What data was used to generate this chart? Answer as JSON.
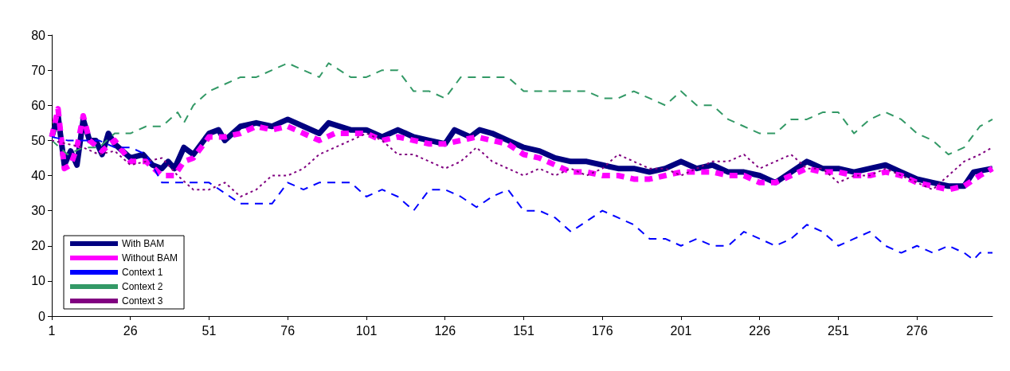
{
  "chart_data": {
    "type": "line",
    "xlim": [
      1,
      300
    ],
    "xticks": [
      1,
      26,
      51,
      76,
      101,
      126,
      151,
      176,
      201,
      226,
      251,
      276
    ],
    "ylim": [
      0,
      80
    ],
    "yticks": [
      0,
      10,
      20,
      30,
      40,
      50,
      60,
      70,
      80
    ],
    "grid": false,
    "legend": "bottom left",
    "marker": "none",
    "series": [
      {
        "name": "With BAM",
        "color": "#000080",
        "line_style": "solid",
        "x": [
          1,
          3,
          5,
          7,
          9,
          11,
          13,
          15,
          17,
          19,
          21,
          26,
          30,
          33,
          36,
          38,
          40,
          43,
          46,
          51,
          54,
          56,
          61,
          66,
          71,
          76,
          81,
          86,
          89,
          96,
          101,
          106,
          111,
          116,
          121,
          126,
          129,
          134,
          137,
          141,
          146,
          151,
          156,
          161,
          166,
          171,
          176,
          181,
          186,
          191,
          196,
          201,
          206,
          211,
          216,
          221,
          226,
          231,
          236,
          241,
          246,
          251,
          256,
          261,
          266,
          271,
          276,
          281,
          286,
          291,
          294,
          300
        ],
        "values": [
          51,
          57,
          43,
          47,
          43,
          56,
          50,
          50,
          46,
          52,
          49,
          45,
          46,
          43,
          42,
          44,
          42,
          48,
          46,
          52,
          53,
          50,
          54,
          55,
          54,
          56,
          54,
          52,
          55,
          53,
          53,
          51,
          53,
          51,
          50,
          49,
          53,
          51,
          53,
          52,
          50,
          48,
          47,
          45,
          44,
          44,
          43,
          42,
          42,
          41,
          42,
          44,
          42,
          43,
          41,
          41,
          40,
          38,
          41,
          44,
          42,
          42,
          41,
          42,
          43,
          41,
          39,
          38,
          37,
          37,
          41,
          42
        ]
      },
      {
        "name": "Without BAM",
        "color": "#ff00ff",
        "line_style": "dashed",
        "x": [
          1,
          3,
          5,
          7,
          9,
          11,
          13,
          17,
          21,
          26,
          31,
          36,
          40,
          43,
          46,
          51,
          56,
          61,
          66,
          71,
          76,
          81,
          86,
          91,
          96,
          101,
          106,
          111,
          116,
          121,
          126,
          131,
          136,
          141,
          146,
          151,
          156,
          161,
          166,
          171,
          176,
          181,
          186,
          191,
          196,
          201,
          206,
          211,
          216,
          221,
          226,
          231,
          236,
          241,
          246,
          251,
          256,
          261,
          266,
          271,
          276,
          281,
          286,
          291,
          296,
          300
        ],
        "values": [
          51,
          59,
          42,
          43,
          48,
          57,
          50,
          47,
          50,
          44,
          44,
          40,
          40,
          44,
          45,
          51,
          51,
          52,
          54,
          53,
          54,
          52,
          50,
          52,
          52,
          52,
          50,
          51,
          50,
          49,
          49,
          50,
          51,
          50,
          49,
          46,
          45,
          43,
          41,
          41,
          40,
          40,
          39,
          39,
          40,
          41,
          41,
          41,
          40,
          40,
          38,
          38,
          40,
          42,
          41,
          41,
          40,
          40,
          41,
          40,
          38,
          37,
          36,
          37,
          40,
          42
        ]
      },
      {
        "name": "Context 1",
        "color": "#0000ff",
        "line_style": "dashed",
        "x": [
          1,
          6,
          16,
          21,
          26,
          31,
          36,
          46,
          51,
          56,
          61,
          66,
          71,
          76,
          81,
          86,
          96,
          101,
          106,
          111,
          116,
          121,
          126,
          131,
          136,
          141,
          146,
          151,
          156,
          161,
          166,
          171,
          176,
          181,
          186,
          191,
          196,
          201,
          206,
          211,
          216,
          221,
          226,
          231,
          236,
          241,
          246,
          251,
          256,
          261,
          266,
          271,
          276,
          281,
          286,
          291,
          294,
          296,
          300
        ],
        "values": [
          51,
          50,
          50,
          48,
          48,
          46,
          38,
          38,
          38,
          35,
          32,
          32,
          32,
          38,
          36,
          38,
          38,
          34,
          36,
          34,
          30,
          36,
          36,
          34,
          31,
          34,
          36,
          30,
          30,
          28,
          24,
          27,
          30,
          28,
          26,
          22,
          22,
          20,
          22,
          20,
          20,
          24,
          22,
          20,
          22,
          26,
          24,
          20,
          22,
          24,
          20,
          18,
          20,
          18,
          20,
          18,
          16,
          18,
          18
        ]
      },
      {
        "name": "Context 2",
        "color": "#339966",
        "line_style": "dashed",
        "x": [
          1,
          6,
          11,
          16,
          21,
          26,
          31,
          36,
          41,
          43,
          46,
          51,
          56,
          61,
          66,
          71,
          76,
          81,
          86,
          89,
          96,
          101,
          106,
          111,
          116,
          121,
          126,
          131,
          136,
          141,
          146,
          151,
          156,
          161,
          166,
          171,
          176,
          181,
          186,
          191,
          196,
          201,
          206,
          211,
          216,
          221,
          226,
          231,
          236,
          241,
          246,
          251,
          256,
          261,
          266,
          271,
          276,
          281,
          286,
          291,
          296,
          300
        ],
        "values": [
          50,
          46,
          48,
          48,
          52,
          52,
          54,
          54,
          58,
          55,
          60,
          64,
          66,
          68,
          68,
          70,
          72,
          70,
          68,
          72,
          68,
          68,
          70,
          70,
          64,
          64,
          62,
          68,
          68,
          68,
          68,
          64,
          64,
          64,
          64,
          64,
          62,
          62,
          64,
          62,
          60,
          64,
          60,
          60,
          56,
          54,
          52,
          52,
          56,
          56,
          58,
          58,
          52,
          56,
          58,
          56,
          52,
          50,
          46,
          48,
          54,
          56
        ]
      },
      {
        "name": "Context 3",
        "color": "#800080",
        "line_style": "dotted",
        "x": [
          1,
          6,
          11,
          16,
          21,
          26,
          31,
          36,
          41,
          46,
          51,
          56,
          61,
          66,
          71,
          76,
          81,
          86,
          91,
          96,
          101,
          106,
          111,
          116,
          121,
          126,
          131,
          136,
          141,
          146,
          151,
          156,
          161,
          166,
          171,
          176,
          181,
          186,
          191,
          196,
          201,
          206,
          211,
          216,
          221,
          226,
          231,
          236,
          241,
          246,
          251,
          256,
          261,
          266,
          271,
          276,
          281,
          286,
          291,
          296,
          300
        ],
        "values": [
          50,
          49,
          48,
          46,
          47,
          43,
          44,
          45,
          40,
          36,
          36,
          38,
          34,
          36,
          40,
          40,
          42,
          46,
          48,
          50,
          52,
          50,
          46,
          46,
          44,
          42,
          44,
          48,
          44,
          42,
          40,
          42,
          40,
          42,
          40,
          42,
          46,
          44,
          42,
          42,
          40,
          42,
          44,
          44,
          46,
          42,
          44,
          46,
          42,
          42,
          38,
          40,
          40,
          42,
          40,
          38,
          36,
          40,
          44,
          46,
          48
        ]
      }
    ]
  }
}
